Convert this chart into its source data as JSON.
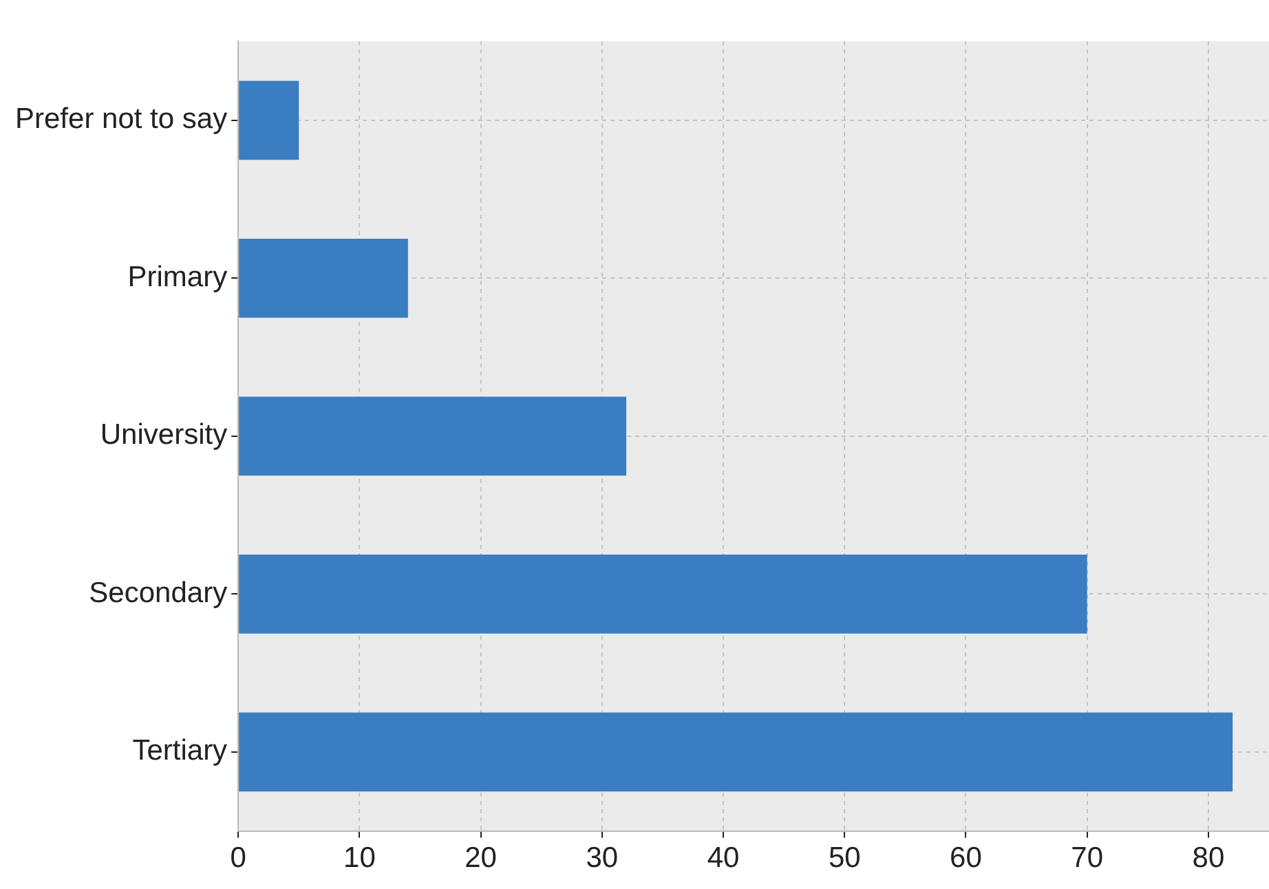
{
  "chart_data": {
    "type": "bar",
    "orientation": "horizontal",
    "categories": [
      "Prefer not to say",
      "Primary",
      "University",
      "Secondary",
      "Tertiary"
    ],
    "values": [
      5,
      14,
      32,
      70,
      82
    ],
    "color": "#3a7dc1",
    "xlim": [
      0,
      85
    ],
    "xticks": [
      0,
      10,
      20,
      30,
      40,
      50,
      60,
      70,
      80
    ],
    "grid": true,
    "legend": false
  }
}
